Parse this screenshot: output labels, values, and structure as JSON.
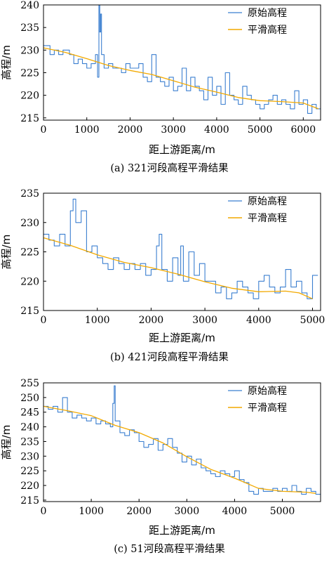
{
  "colors": {
    "raw": "#3b7fd0",
    "smooth": "#f2a900",
    "axis": "#000000"
  },
  "legend": {
    "raw": "原始高程",
    "smooth": "平滑高程",
    "placement": "top-right"
  },
  "chart_data": [
    {
      "type": "line",
      "caption": "(a) 321河段高程平滑结果",
      "xlabel": "距上游距离/m",
      "ylabel": "高程/m",
      "xlim": [
        0,
        6400
      ],
      "ylim": [
        214.5,
        240
      ],
      "xticks": [
        0,
        1000,
        2000,
        3000,
        4000,
        5000,
        6000
      ],
      "yticks": [
        215,
        220,
        225,
        230,
        235,
        240
      ],
      "series": [
        {
          "name": "原始高程",
          "style": "step",
          "x": [
            0,
            150,
            250,
            350,
            450,
            600,
            700,
            800,
            900,
            1000,
            1100,
            1200,
            1250,
            1280,
            1300,
            1320,
            1340,
            1400,
            1500,
            1600,
            1700,
            1800,
            1900,
            2000,
            2100,
            2200,
            2300,
            2400,
            2500,
            2600,
            2700,
            2800,
            2900,
            3000,
            3100,
            3200,
            3300,
            3400,
            3500,
            3600,
            3700,
            3800,
            3900,
            4000,
            4100,
            4200,
            4300,
            4400,
            4500,
            4600,
            4700,
            4800,
            4900,
            5000,
            5100,
            5200,
            5300,
            5400,
            5500,
            5600,
            5700,
            5800,
            5900,
            6000,
            6100,
            6200,
            6300
          ],
          "y": [
            231,
            229,
            230,
            229,
            230,
            229,
            227,
            228,
            227,
            226,
            227,
            229,
            224,
            240,
            234,
            238,
            229,
            226,
            227,
            226,
            226,
            225,
            227,
            226,
            226,
            227,
            224,
            223,
            229,
            224,
            223,
            222,
            224,
            221,
            222,
            226,
            221,
            224,
            222,
            221,
            219,
            224,
            220,
            222,
            218,
            225,
            220,
            219,
            218,
            222,
            220,
            219,
            218,
            217,
            218,
            219,
            220,
            218,
            219,
            218,
            217,
            221,
            218,
            219,
            216,
            218,
            217
          ]
        },
        {
          "name": "平滑高程",
          "style": "smooth",
          "x": [
            0,
            500,
            1000,
            1500,
            2000,
            2500,
            3000,
            3500,
            4000,
            4500,
            5000,
            5500,
            6000,
            6350
          ],
          "y": [
            230.5,
            229.5,
            228.1,
            226.6,
            225.5,
            224.6,
            223.2,
            221.8,
            220.7,
            219.5,
            218.8,
            218.6,
            218.3,
            217.0
          ]
        }
      ]
    },
    {
      "type": "line",
      "caption": "(b) 421河段高程平滑结果",
      "xlabel": "距上游距离/m",
      "ylabel": "高程/m",
      "xlim": [
        0,
        5150
      ],
      "ylim": [
        215,
        235
      ],
      "xticks": [
        0,
        1000,
        2000,
        3000,
        4000,
        5000
      ],
      "yticks": [
        215,
        220,
        225,
        230,
        235
      ],
      "series": [
        {
          "name": "原始高程",
          "style": "step",
          "x": [
            0,
            100,
            200,
            300,
            400,
            500,
            550,
            600,
            700,
            800,
            900,
            1000,
            1100,
            1200,
            1300,
            1400,
            1500,
            1600,
            1700,
            1800,
            1900,
            2000,
            2100,
            2150,
            2200,
            2300,
            2400,
            2500,
            2550,
            2600,
            2700,
            2800,
            2900,
            3000,
            3100,
            3200,
            3300,
            3400,
            3500,
            3600,
            3700,
            3800,
            3900,
            4000,
            4100,
            4200,
            4300,
            4400,
            4500,
            4600,
            4700,
            4800,
            4900,
            5000
          ],
          "y": [
            228,
            227,
            226,
            228,
            226,
            232,
            234,
            230,
            232,
            225,
            226,
            224,
            223,
            222,
            224,
            223,
            222,
            223,
            222,
            223,
            221,
            222,
            226,
            228,
            222,
            220,
            224,
            221,
            226,
            220,
            225,
            221,
            223,
            220,
            220,
            218,
            219,
            217,
            218,
            220,
            219,
            218,
            217,
            220,
            221,
            219,
            218,
            219,
            222,
            219,
            220,
            218,
            217,
            221
          ]
        },
        {
          "name": "平滑高程",
          "style": "smooth",
          "x": [
            0,
            500,
            1000,
            1500,
            2000,
            2500,
            3000,
            3500,
            4000,
            4500,
            4750,
            5000
          ],
          "y": [
            227.4,
            226.1,
            224.5,
            223.2,
            222.3,
            221.2,
            219.9,
            218.8,
            218.2,
            218.3,
            218.0,
            217.0
          ]
        }
      ]
    },
    {
      "type": "line",
      "caption": "(c) 51河段高程平滑结果",
      "xlabel": "距上游距离/m",
      "ylabel": "高程/m",
      "xlim": [
        0,
        5800
      ],
      "ylim": [
        214.5,
        255
      ],
      "xticks": [
        0,
        1000,
        2000,
        3000,
        4000,
        5000
      ],
      "yticks": [
        215,
        220,
        225,
        230,
        235,
        240,
        245,
        250,
        255
      ],
      "series": [
        {
          "name": "原始高程",
          "style": "step",
          "x": [
            0,
            100,
            200,
            300,
            400,
            500,
            600,
            700,
            800,
            900,
            1000,
            1100,
            1200,
            1300,
            1400,
            1450,
            1480,
            1500,
            1600,
            1700,
            1800,
            1900,
            2000,
            2100,
            2200,
            2300,
            2400,
            2500,
            2600,
            2700,
            2800,
            2900,
            3000,
            3100,
            3200,
            3300,
            3400,
            3500,
            3600,
            3700,
            3800,
            3900,
            4000,
            4100,
            4200,
            4300,
            4400,
            4500,
            4600,
            4700,
            4800,
            4900,
            5000,
            5100,
            5200,
            5300,
            5400,
            5500,
            5600,
            5700
          ],
          "y": [
            247,
            246,
            247,
            245,
            250,
            245,
            243,
            244,
            243,
            242,
            243,
            241,
            242,
            241,
            240,
            248,
            254,
            242,
            238,
            237,
            239,
            238,
            235,
            233,
            234,
            236,
            232,
            234,
            236,
            233,
            231,
            228,
            230,
            227,
            229,
            226,
            225,
            224,
            223,
            225,
            224,
            223,
            225,
            222,
            221,
            218,
            217,
            219,
            218,
            218,
            219,
            218,
            219,
            218,
            220,
            218,
            217,
            219,
            218,
            217
          ]
        },
        {
          "name": "平滑高程",
          "style": "smooth",
          "x": [
            0,
            500,
            1000,
            1500,
            2000,
            2500,
            3000,
            3500,
            4000,
            4500,
            5000,
            5500,
            5700
          ],
          "y": [
            247,
            245.5,
            243.8,
            240.5,
            238.0,
            234.5,
            229.8,
            225.5,
            222.5,
            219.0,
            218.0,
            217.7,
            217.3
          ]
        }
      ]
    }
  ]
}
